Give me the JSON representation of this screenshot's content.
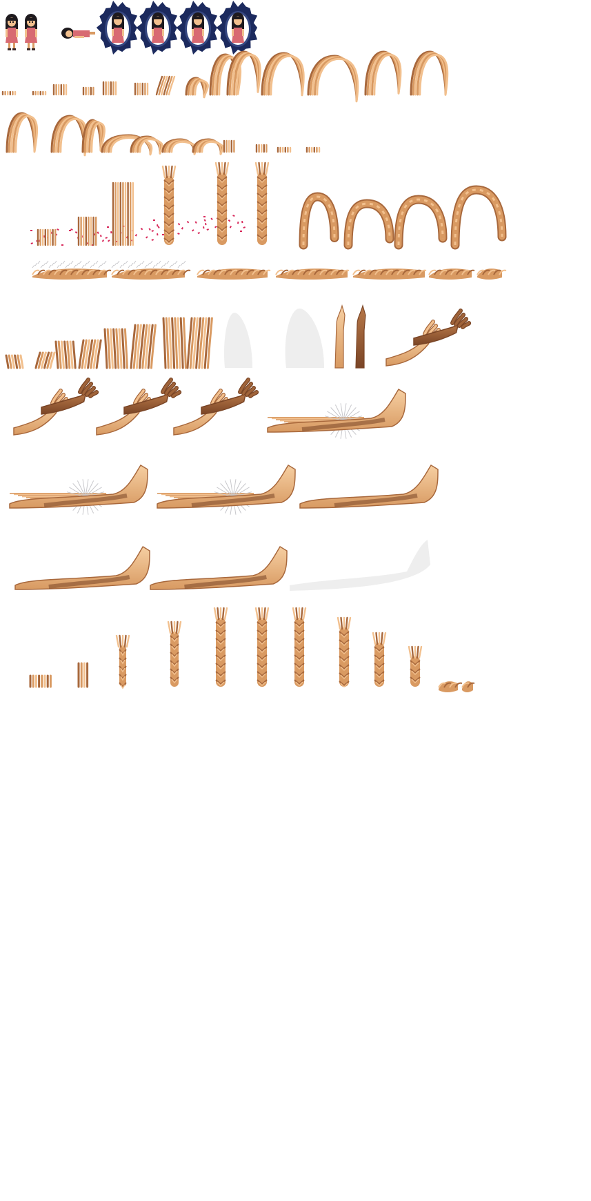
{
  "sheet": {
    "kind": "sprite-sheet",
    "background": "#ffffff",
    "palette": {
      "skin_light": "#F2C08E",
      "skin_mid": "#D99A62",
      "skin_dark": "#A8683C",
      "skin_shadow": "#7A4526",
      "hair": "#1E1A1E",
      "dress": "#D86A72",
      "aura": "#1C2A5E",
      "aura_light": "#4B5E9E",
      "flower": "#D8285A",
      "dust": "#C8C8CC",
      "ghost": "#EEEEEE"
    },
    "rows": [
      {
        "id": "row-character",
        "sprites": [
          "girl-standing",
          "girl-standing",
          "girl-lying",
          "girl-aura",
          "girl-aura",
          "girl-aura",
          "girl-aura"
        ]
      },
      {
        "id": "row-hair-rise",
        "frames": 15
      },
      {
        "id": "row-hair-fall",
        "frames": 11
      },
      {
        "id": "row-hair-pillar",
        "frames": 10
      },
      {
        "id": "row-hair-ground",
        "frames": 6
      },
      {
        "id": "row-hair-sprouts",
        "frames": 9
      },
      {
        "id": "row-hands-grab",
        "frames": 4
      },
      {
        "id": "row-hands-thrust",
        "frames": 3
      },
      {
        "id": "row-hands-hold",
        "frames": 3
      },
      {
        "id": "row-braid-pillar",
        "frames": 11
      }
    ]
  }
}
